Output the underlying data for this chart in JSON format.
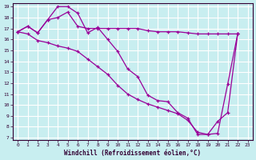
{
  "xlabel": "Windchill (Refroidissement éolien,°C)",
  "background_color": "#c8eef0",
  "grid_color": "#ffffff",
  "line_color": "#990099",
  "xlim": [
    -0.5,
    23.5
  ],
  "ylim": [
    6.8,
    19.3
  ],
  "x_ticks": [
    0,
    1,
    2,
    3,
    4,
    5,
    6,
    7,
    8,
    9,
    10,
    11,
    12,
    13,
    14,
    15,
    16,
    17,
    18,
    19,
    20,
    21,
    22,
    23
  ],
  "y_ticks": [
    7,
    8,
    9,
    10,
    11,
    12,
    13,
    14,
    15,
    16,
    17,
    18,
    19
  ],
  "series1_x": [
    0,
    1,
    2,
    3,
    4,
    5,
    6,
    7,
    8,
    9,
    10,
    11,
    12,
    13,
    14,
    15,
    16,
    17,
    18,
    19,
    20,
    21,
    22
  ],
  "series1_y": [
    16.7,
    17.2,
    16.6,
    17.8,
    19.0,
    19.0,
    18.4,
    16.6,
    17.1,
    16.0,
    14.9,
    13.3,
    12.6,
    10.9,
    10.4,
    10.3,
    9.3,
    8.8,
    7.3,
    7.3,
    7.4,
    11.9,
    16.5
  ],
  "series2_x": [
    0,
    1,
    2,
    3,
    4,
    5,
    6,
    7,
    8,
    9,
    10,
    11,
    12,
    13,
    14,
    15,
    16,
    17,
    18,
    19,
    20,
    21,
    22
  ],
  "series2_y": [
    16.7,
    17.2,
    16.6,
    17.8,
    18.0,
    18.5,
    17.2,
    17.0,
    17.0,
    17.0,
    17.0,
    17.0,
    17.0,
    16.8,
    16.7,
    16.7,
    16.7,
    16.6,
    16.5,
    16.5,
    16.5,
    16.5,
    16.5
  ],
  "series3_x": [
    0,
    1,
    2,
    3,
    4,
    5,
    6,
    7,
    8,
    9,
    10,
    11,
    12,
    13,
    14,
    15,
    16,
    17,
    18,
    19,
    20,
    21,
    22
  ],
  "series3_y": [
    16.7,
    16.5,
    15.9,
    15.7,
    15.4,
    15.2,
    14.9,
    14.2,
    13.5,
    12.8,
    11.8,
    11.0,
    10.5,
    10.1,
    9.8,
    9.5,
    9.2,
    8.6,
    7.5,
    7.3,
    8.5,
    9.3,
    16.5
  ]
}
